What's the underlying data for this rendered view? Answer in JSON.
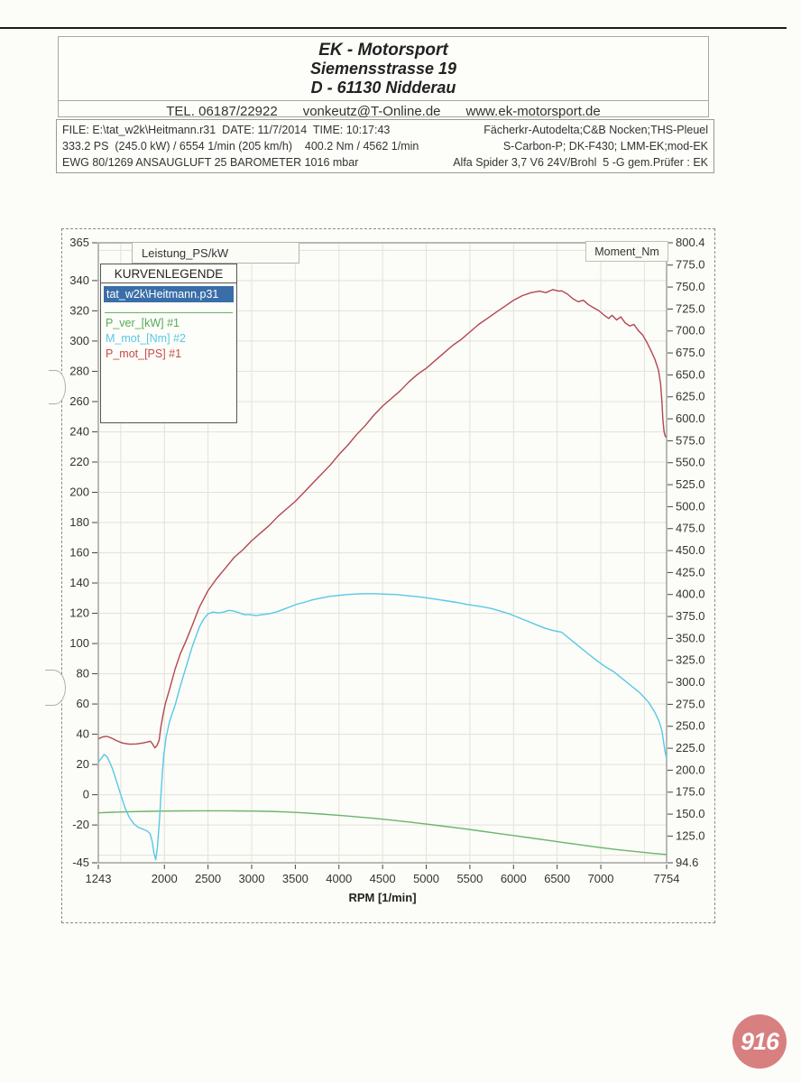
{
  "page": {
    "badge": "916"
  },
  "header": {
    "company": "EK - Motorsport",
    "street": "Siemensstrasse 19",
    "city": "D - 61130 Nidderau",
    "tel": "TEL. 06187/22922",
    "email": "vonkeutz@T-Online.de",
    "web": "www.ek-motorsport.de"
  },
  "info": {
    "rows": [
      {
        "left": "FILE: E:\\tat_w2k\\Heitmann.r31  DATE: 11/7/2014  TIME: 10:17:43",
        "right": "Fächerkr-Autodelta;C&B Nocken;THS-Pleuel"
      },
      {
        "left": "333.2 PS  (245.0 kW) / 6554 1/min (205 km/h)    400.2 Nm / 4562 1/min",
        "right": "S-Carbon-P; DK-F430; LMM-EK;mod-EK"
      },
      {
        "left": "EWG 80/1269 ANSAUGLUFT 25 BAROMETER 1016 mbar",
        "right": "Alfa Spider 3,7 V6 24V/Brohl  5 -G gem.Prüfer : EK"
      }
    ]
  },
  "chart": {
    "tab_left": "Leistung_PS/kW",
    "tab_right": "Moment_Nm",
    "legend": {
      "title": "KURVENLEGENDE",
      "file": "tat_w2k\\Heitmann.p31",
      "highlight_color": "#3a6ea8",
      "items": [
        {
          "label": "P_ver_[kW] #1",
          "color": "#55ab55"
        },
        {
          "label": "M_mot_[Nm] #2",
          "color": "#58c8e8"
        },
        {
          "label": "P_mot_[PS] #1",
          "color": "#c44a4a"
        }
      ]
    }
  },
  "chart_data": {
    "type": "line",
    "xlabel": "RPM [1/min]",
    "xlim": [
      1243,
      7754
    ],
    "x_ticks": [
      1243,
      2000,
      2500,
      3000,
      3500,
      4000,
      4500,
      5000,
      5500,
      6000,
      6500,
      7000,
      7754
    ],
    "left_axis": {
      "lim": [
        -45,
        365
      ],
      "ticks": [
        365,
        340,
        320,
        300,
        280,
        260,
        240,
        220,
        200,
        180,
        160,
        140,
        120,
        100,
        80,
        60,
        40,
        20,
        0,
        -20,
        -45
      ]
    },
    "right_axis": {
      "lim": [
        94.6,
        800.4
      ],
      "ticks": [
        800.4,
        775.0,
        750.0,
        725.0,
        700.0,
        675.0,
        650.0,
        625.0,
        600.0,
        575.0,
        550.0,
        525.0,
        500.0,
        475.0,
        450.0,
        425.0,
        400.0,
        375.0,
        350.0,
        325.0,
        300.0,
        275.0,
        250.0,
        225.0,
        200.0,
        175.0,
        150.0,
        125.0,
        94.6
      ]
    },
    "grid": {
      "x_step": 500,
      "x_from": 1500,
      "x_to": 7500,
      "y_step": 20,
      "y_from": -40,
      "y_to": 360,
      "color": "#e3e3da"
    },
    "series": [
      {
        "name": "P_ver_[kW] #1",
        "axis": "left",
        "color": "#6ab56a",
        "points": [
          [
            1243,
            -12
          ],
          [
            1400,
            -11.6
          ],
          [
            1600,
            -11.2
          ],
          [
            1800,
            -11
          ],
          [
            2000,
            -10.8
          ],
          [
            2200,
            -10.7
          ],
          [
            2400,
            -10.6
          ],
          [
            2600,
            -10.6
          ],
          [
            2800,
            -10.7
          ],
          [
            3000,
            -10.8
          ],
          [
            3200,
            -11
          ],
          [
            3400,
            -11.4
          ],
          [
            3600,
            -12
          ],
          [
            3800,
            -12.8
          ],
          [
            4000,
            -13.6
          ],
          [
            4200,
            -14.6
          ],
          [
            4400,
            -15.6
          ],
          [
            4600,
            -16.8
          ],
          [
            4800,
            -18
          ],
          [
            5000,
            -19.4
          ],
          [
            5200,
            -20.8
          ],
          [
            5400,
            -22.2
          ],
          [
            5600,
            -23.8
          ],
          [
            5800,
            -25.4
          ],
          [
            6000,
            -27
          ],
          [
            6200,
            -28.6
          ],
          [
            6400,
            -30.2
          ],
          [
            6600,
            -31.8
          ],
          [
            6800,
            -33.4
          ],
          [
            7000,
            -35
          ],
          [
            7200,
            -36.4
          ],
          [
            7400,
            -37.6
          ],
          [
            7600,
            -38.8
          ],
          [
            7754,
            -39.5
          ]
        ]
      },
      {
        "name": "M_mot_[Nm] #2",
        "axis": "right",
        "color": "#58c8e8",
        "points": [
          [
            1243,
            209
          ],
          [
            1280,
            214
          ],
          [
            1310,
            218
          ],
          [
            1345,
            215
          ],
          [
            1400,
            203
          ],
          [
            1450,
            188
          ],
          [
            1500,
            172
          ],
          [
            1550,
            157
          ],
          [
            1600,
            146
          ],
          [
            1650,
            139
          ],
          [
            1700,
            135
          ],
          [
            1750,
            133
          ],
          [
            1800,
            131
          ],
          [
            1835,
            128
          ],
          [
            1860,
            119
          ],
          [
            1880,
            106
          ],
          [
            1900,
            98
          ],
          [
            1920,
            112
          ],
          [
            1945,
            145
          ],
          [
            1965,
            180
          ],
          [
            1990,
            215
          ],
          [
            2020,
            238
          ],
          [
            2060,
            256
          ],
          [
            2123,
            274
          ],
          [
            2180,
            295
          ],
          [
            2250,
            318
          ],
          [
            2320,
            341
          ],
          [
            2400,
            363
          ],
          [
            2450,
            372
          ],
          [
            2500,
            378
          ],
          [
            2560,
            380
          ],
          [
            2620,
            379
          ],
          [
            2680,
            380
          ],
          [
            2740,
            382
          ],
          [
            2800,
            381
          ],
          [
            2860,
            379
          ],
          [
            2920,
            377
          ],
          [
            2980,
            377
          ],
          [
            3050,
            376
          ],
          [
            3120,
            377
          ],
          [
            3200,
            378
          ],
          [
            3280,
            380
          ],
          [
            3360,
            383
          ],
          [
            3440,
            386
          ],
          [
            3520,
            389
          ],
          [
            3600,
            391
          ],
          [
            3700,
            394
          ],
          [
            3800,
            396
          ],
          [
            3900,
            398
          ],
          [
            4000,
            399
          ],
          [
            4100,
            400
          ],
          [
            4200,
            400.5
          ],
          [
            4300,
            401
          ],
          [
            4400,
            401
          ],
          [
            4500,
            400.5
          ],
          [
            4562,
            400.2
          ],
          [
            4650,
            400
          ],
          [
            4750,
            399
          ],
          [
            4850,
            398
          ],
          [
            4950,
            397
          ],
          [
            5050,
            395.5
          ],
          [
            5150,
            394
          ],
          [
            5250,
            392.5
          ],
          [
            5350,
            391
          ],
          [
            5450,
            389
          ],
          [
            5550,
            387.5
          ],
          [
            5650,
            386
          ],
          [
            5750,
            384
          ],
          [
            5850,
            381
          ],
          [
            5950,
            378
          ],
          [
            6050,
            374
          ],
          [
            6150,
            370
          ],
          [
            6250,
            366
          ],
          [
            6350,
            362
          ],
          [
            6450,
            359
          ],
          [
            6554,
            357
          ],
          [
            6650,
            349
          ],
          [
            6750,
            341
          ],
          [
            6850,
            333
          ],
          [
            6950,
            325
          ],
          [
            7050,
            318
          ],
          [
            7150,
            312
          ],
          [
            7250,
            304
          ],
          [
            7350,
            296
          ],
          [
            7450,
            288
          ],
          [
            7550,
            277
          ],
          [
            7620,
            266
          ],
          [
            7670,
            255
          ],
          [
            7700,
            245
          ],
          [
            7720,
            232
          ],
          [
            7735,
            222
          ],
          [
            7754,
            213
          ]
        ]
      },
      {
        "name": "P_mot_[PS] #1",
        "axis": "left",
        "color": "#b2474f",
        "points": [
          [
            1243,
            37
          ],
          [
            1290,
            38.2
          ],
          [
            1340,
            38.6
          ],
          [
            1390,
            37.6
          ],
          [
            1450,
            35.8
          ],
          [
            1520,
            34.2
          ],
          [
            1600,
            33.4
          ],
          [
            1680,
            33.6
          ],
          [
            1750,
            34.2
          ],
          [
            1800,
            34.8
          ],
          [
            1840,
            35.4
          ],
          [
            1865,
            33.5
          ],
          [
            1890,
            31
          ],
          [
            1915,
            32.5
          ],
          [
            1940,
            36
          ],
          [
            1960,
            45
          ],
          [
            1985,
            53
          ],
          [
            2010,
            60
          ],
          [
            2060,
            70
          ],
          [
            2123,
            83
          ],
          [
            2180,
            93
          ],
          [
            2250,
            102
          ],
          [
            2320,
            112
          ],
          [
            2400,
            124
          ],
          [
            2500,
            135
          ],
          [
            2600,
            143
          ],
          [
            2700,
            150
          ],
          [
            2800,
            157
          ],
          [
            2900,
            162
          ],
          [
            3000,
            168
          ],
          [
            3100,
            173
          ],
          [
            3200,
            178
          ],
          [
            3300,
            184
          ],
          [
            3400,
            189
          ],
          [
            3500,
            194
          ],
          [
            3600,
            200
          ],
          [
            3700,
            206
          ],
          [
            3800,
            212
          ],
          [
            3900,
            218
          ],
          [
            4000,
            225
          ],
          [
            4100,
            231
          ],
          [
            4200,
            238
          ],
          [
            4300,
            244
          ],
          [
            4400,
            251
          ],
          [
            4500,
            257
          ],
          [
            4600,
            262
          ],
          [
            4700,
            267
          ],
          [
            4800,
            273
          ],
          [
            4900,
            278
          ],
          [
            5000,
            282
          ],
          [
            5100,
            287
          ],
          [
            5200,
            292
          ],
          [
            5300,
            297
          ],
          [
            5400,
            301
          ],
          [
            5500,
            306
          ],
          [
            5600,
            311
          ],
          [
            5700,
            315
          ],
          [
            5800,
            319
          ],
          [
            5900,
            323
          ],
          [
            6000,
            327
          ],
          [
            6100,
            330
          ],
          [
            6200,
            332
          ],
          [
            6300,
            333
          ],
          [
            6370,
            332
          ],
          [
            6450,
            334
          ],
          [
            6520,
            333
          ],
          [
            6554,
            333.2
          ],
          [
            6620,
            331
          ],
          [
            6680,
            328
          ],
          [
            6740,
            326
          ],
          [
            6800,
            327
          ],
          [
            6860,
            324
          ],
          [
            6920,
            322
          ],
          [
            6980,
            320
          ],
          [
            7040,
            317
          ],
          [
            7090,
            315
          ],
          [
            7130,
            317
          ],
          [
            7180,
            314
          ],
          [
            7230,
            316
          ],
          [
            7280,
            312
          ],
          [
            7330,
            310
          ],
          [
            7380,
            311
          ],
          [
            7430,
            307
          ],
          [
            7480,
            304
          ],
          [
            7530,
            299
          ],
          [
            7580,
            293
          ],
          [
            7620,
            288
          ],
          [
            7660,
            281
          ],
          [
            7685,
            272
          ],
          [
            7700,
            260
          ],
          [
            7712,
            248
          ],
          [
            7725,
            240
          ],
          [
            7740,
            237
          ],
          [
            7754,
            236.5
          ]
        ]
      }
    ],
    "annotations": {
      "peak_power": "333.2 PS / 6554 1/min",
      "peak_torque": "400.2 Nm / 4562 1/min"
    }
  }
}
